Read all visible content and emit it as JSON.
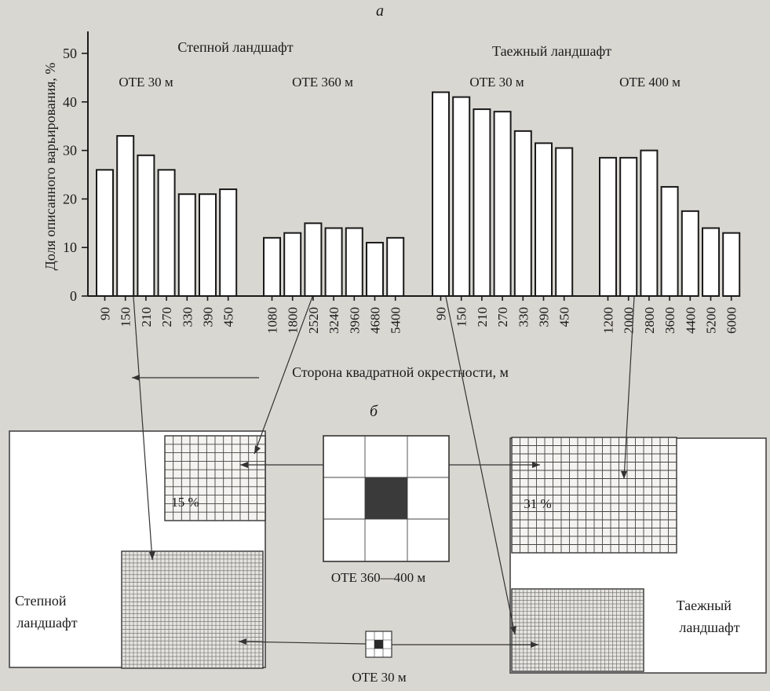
{
  "part_a_label": "а",
  "part_b_label": "б",
  "chart_data": {
    "type": "bar",
    "ylabel": "Доля описанного варьирования, %",
    "xlabel": "Сторона квадратной окрестности, м",
    "ylim": [
      0,
      50
    ],
    "yticks": [
      0,
      10,
      20,
      30,
      40,
      50
    ],
    "grid": false,
    "landscape_labels": [
      "Степной ландшафт",
      "Таежный ландшафт"
    ],
    "groups": [
      {
        "label": "ОТЕ 30 м",
        "categories": [
          "90",
          "150",
          "210",
          "270",
          "330",
          "390",
          "450"
        ],
        "values": [
          26,
          33,
          29,
          26,
          21,
          21,
          22
        ]
      },
      {
        "label": "ОТЕ 360 м",
        "categories": [
          "1080",
          "1800",
          "2520",
          "3240",
          "3960",
          "4680",
          "5400"
        ],
        "values": [
          12,
          13,
          15,
          14,
          14,
          11,
          12
        ]
      },
      {
        "label": "ОТЕ 30 м",
        "categories": [
          "90",
          "150",
          "210",
          "270",
          "330",
          "390",
          "450"
        ],
        "values": [
          42,
          41,
          38.5,
          38,
          34,
          31.5,
          30.5
        ]
      },
      {
        "label": "ОТЕ 400 м",
        "categories": [
          "1200",
          "2000",
          "2800",
          "3600",
          "4400",
          "5200",
          "6000"
        ],
        "values": [
          28.5,
          28.5,
          30,
          22.5,
          17.5,
          14,
          13
        ]
      }
    ]
  },
  "diagram": {
    "left_landscape": "Степной\nландшафт",
    "right_landscape": "Таежный\nландшафт",
    "left_percent": "15 %",
    "right_percent": "31 %",
    "coarse_caption": "ОТЕ 360—400 м",
    "fine_caption": "ОТЕ 30 м"
  }
}
